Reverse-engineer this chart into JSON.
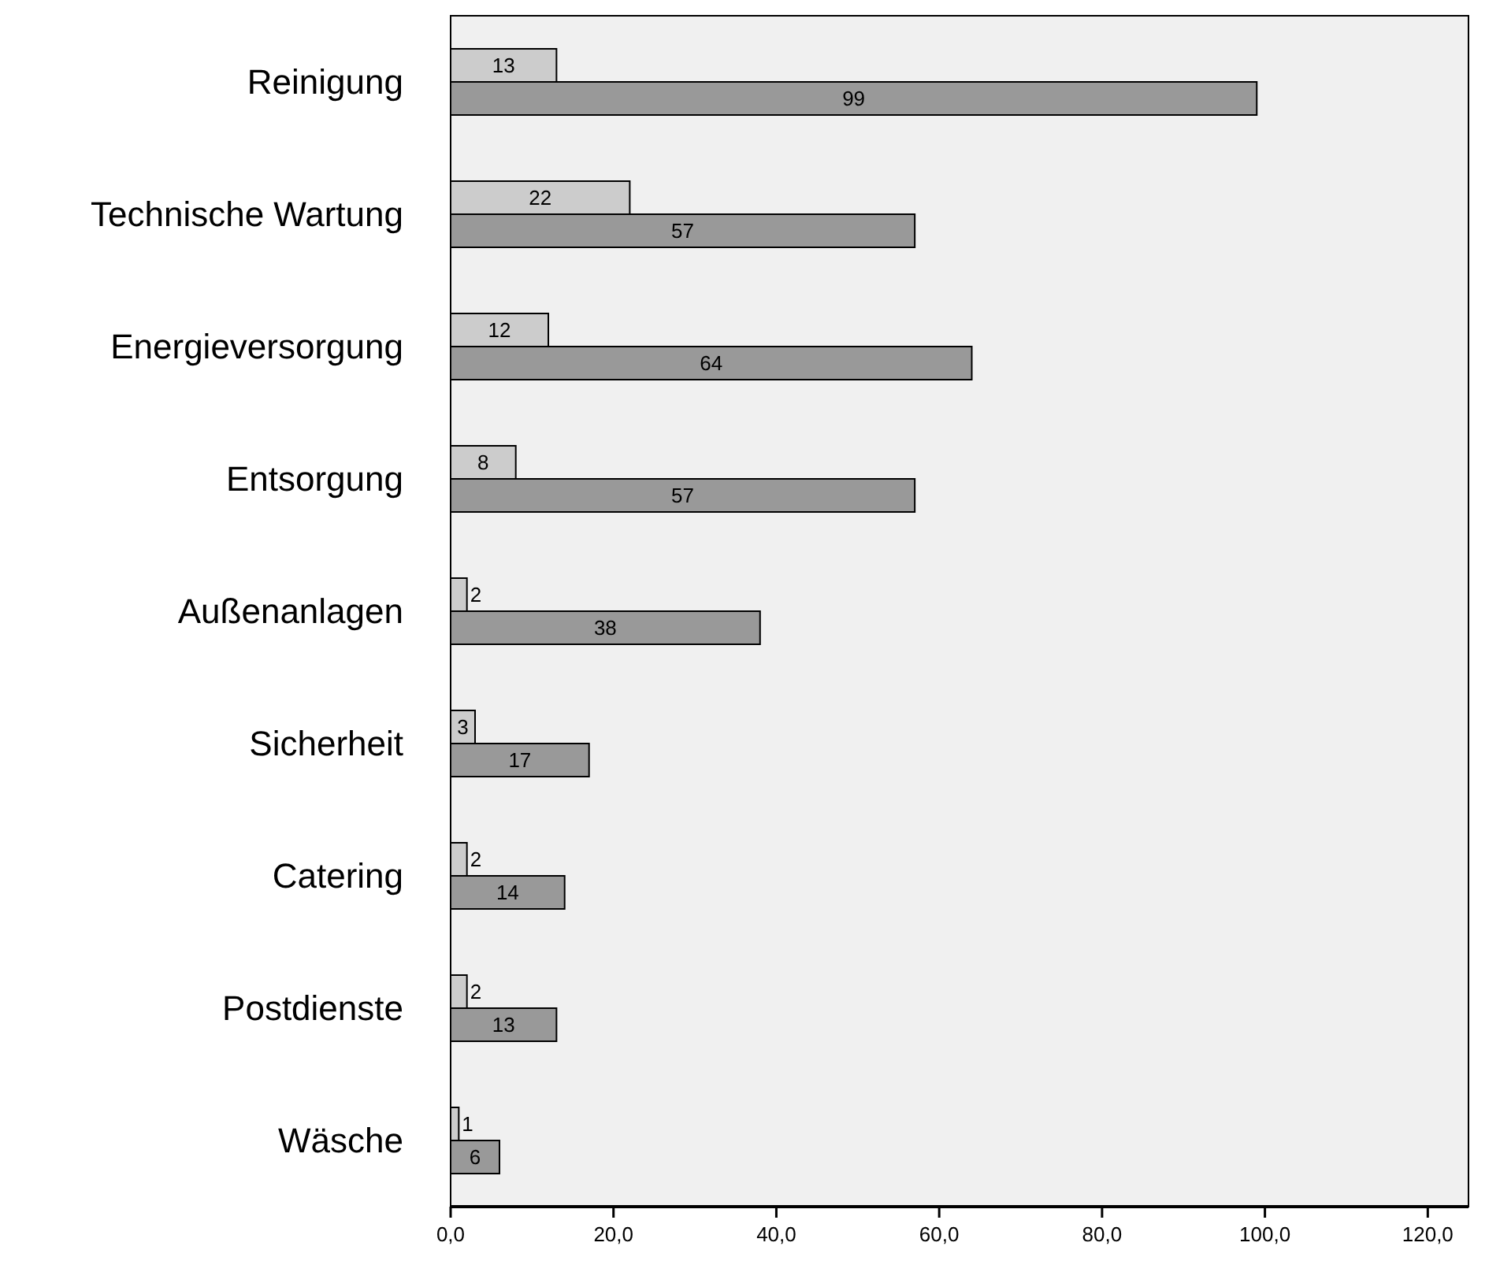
{
  "chart_data": {
    "type": "bar",
    "orientation": "horizontal",
    "categories": [
      "Reinigung",
      "Technische Wartung",
      "Energieversorgung",
      "Entsorgung",
      "Außenanlagen",
      "Sicherheit",
      "Catering",
      "Postdienste",
      "Wäsche"
    ],
    "series": [
      {
        "color": "#cccccc",
        "values": [
          13,
          22,
          12,
          8,
          2,
          3,
          2,
          2,
          1
        ]
      },
      {
        "color": "#999999",
        "values": [
          99,
          57,
          64,
          57,
          38,
          17,
          14,
          13,
          6
        ]
      }
    ],
    "xlim": [
      0,
      125
    ],
    "xticks": [
      {
        "value": 0,
        "label": "0,0"
      },
      {
        "value": 20,
        "label": "20,0"
      },
      {
        "value": 40,
        "label": "40,0"
      },
      {
        "value": 60,
        "label": "60,0"
      },
      {
        "value": 80,
        "label": "80,0"
      },
      {
        "value": 100,
        "label": "100,0"
      },
      {
        "value": 120,
        "label": "120,0"
      }
    ],
    "data_labels": true,
    "grid": false
  }
}
